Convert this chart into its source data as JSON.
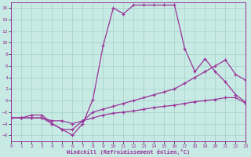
{
  "title": "",
  "xlabel": "Windchill (Refroidissement éolien,°C)",
  "bg_color": "#c8eae4",
  "grid_color": "#a8d4cc",
  "line_color": "#993399",
  "xlim": [
    0,
    23
  ],
  "ylim": [
    -7,
    17
  ],
  "xticks": [
    0,
    1,
    2,
    3,
    4,
    5,
    6,
    7,
    8,
    9,
    10,
    11,
    12,
    13,
    14,
    15,
    16,
    17,
    18,
    19,
    20,
    21,
    22,
    23
  ],
  "yticks": [
    -6,
    -4,
    -2,
    0,
    2,
    4,
    6,
    8,
    10,
    12,
    14,
    16
  ],
  "line1_x": [
    0,
    1,
    2,
    3,
    4,
    5,
    6,
    7,
    8,
    9,
    10,
    11,
    12,
    13,
    14,
    15,
    16,
    17,
    18,
    19,
    20,
    21,
    22,
    23
  ],
  "line1_y": [
    -3.0,
    -3.0,
    -3.0,
    -3.0,
    -4.0,
    -5.0,
    -6.0,
    -4.0,
    0.2,
    9.5,
    16.0,
    15.0,
    16.5,
    16.5,
    16.5,
    16.5,
    16.5,
    9.0,
    5.0,
    7.2,
    5.0,
    3.2,
    1.0,
    -0.3
  ],
  "line2_x": [
    0,
    1,
    2,
    3,
    4,
    5,
    6,
    7,
    8,
    9,
    10,
    11,
    12,
    13,
    14,
    15,
    16,
    17,
    18,
    19,
    20,
    21,
    22,
    23
  ],
  "line2_y": [
    -3.0,
    -3.0,
    -2.5,
    -2.5,
    -4.0,
    -5.0,
    -5.0,
    -3.5,
    -2.0,
    -1.5,
    -1.0,
    -0.5,
    0.0,
    0.5,
    1.0,
    1.5,
    2.0,
    3.0,
    4.0,
    5.0,
    6.0,
    7.0,
    4.5,
    3.5
  ],
  "line3_x": [
    0,
    1,
    2,
    3,
    4,
    5,
    6,
    7,
    8,
    9,
    10,
    11,
    12,
    13,
    14,
    15,
    16,
    17,
    18,
    19,
    20,
    21,
    22,
    23
  ],
  "line3_y": [
    -3.0,
    -3.0,
    -3.0,
    -3.0,
    -3.5,
    -3.5,
    -4.0,
    -3.5,
    -3.0,
    -2.5,
    -2.2,
    -2.0,
    -1.8,
    -1.5,
    -1.2,
    -1.0,
    -0.8,
    -0.5,
    -0.2,
    0.0,
    0.2,
    0.5,
    0.5,
    -0.5
  ]
}
